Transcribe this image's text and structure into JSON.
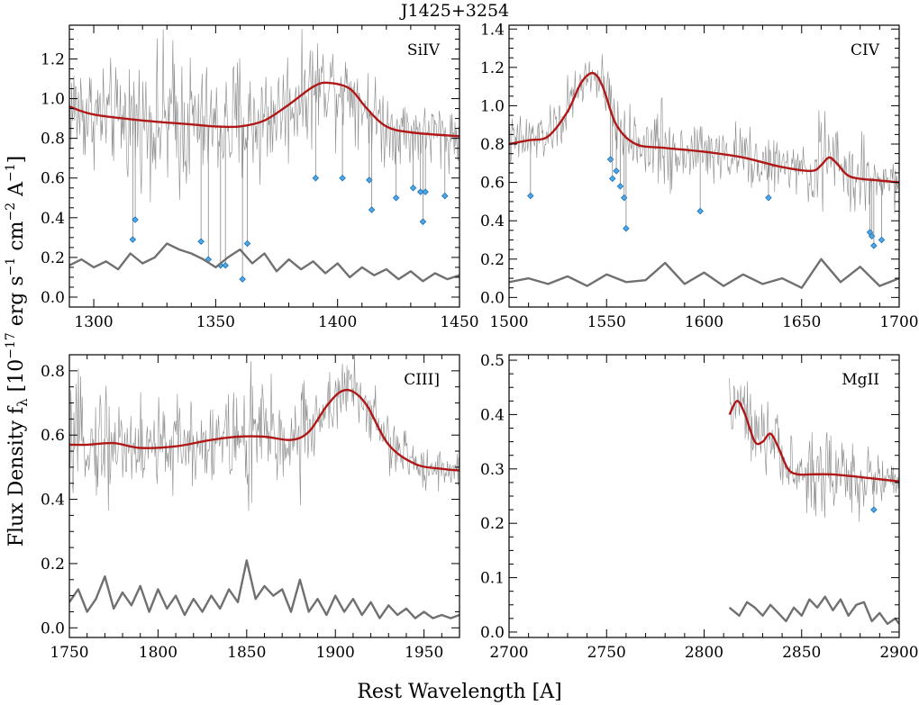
{
  "title": "J1425+3254",
  "xlabel": "Rest Wavelength [A]",
  "ylabel": {
    "prefix": "Flux Density f",
    "sub": "λ",
    "bracket_open": " [10",
    "exp1": "−17",
    "erg": " erg s",
    "exp2": "−1",
    "cm": " cm",
    "exp3": "−2",
    "ang": " A",
    "exp4": "−1",
    "bracket_close": "]"
  },
  "colors": {
    "model": "#b01818",
    "spectrum": "#8a8a8a",
    "error": "#707070",
    "marker_fill": "#4fa8e6",
    "marker_edge": "#1a6fb8"
  },
  "chart_data": [
    {
      "type": "line",
      "label": "SiIV",
      "xlim": [
        1290,
        1450
      ],
      "ylim": [
        -0.05,
        1.37
      ],
      "xticks": [
        1300,
        1350,
        1400,
        1450
      ],
      "yticks": [
        0.0,
        0.2,
        0.4,
        0.6,
        0.8,
        1.0,
        1.2
      ],
      "series": [
        {
          "role": "model",
          "x": [
            1290,
            1300,
            1320,
            1340,
            1350,
            1360,
            1370,
            1380,
            1390,
            1396,
            1405,
            1412,
            1420,
            1430,
            1450
          ],
          "y": [
            0.96,
            0.92,
            0.89,
            0.87,
            0.86,
            0.86,
            0.89,
            0.97,
            1.06,
            1.08,
            1.05,
            0.95,
            0.86,
            0.83,
            0.81
          ]
        },
        {
          "role": "error",
          "x": [
            1290,
            1295,
            1300,
            1305,
            1310,
            1315,
            1320,
            1325,
            1330,
            1335,
            1340,
            1345,
            1350,
            1355,
            1360,
            1365,
            1370,
            1375,
            1380,
            1385,
            1390,
            1395,
            1400,
            1405,
            1410,
            1415,
            1420,
            1425,
            1430,
            1435,
            1440,
            1445,
            1450
          ],
          "y": [
            0.16,
            0.19,
            0.15,
            0.18,
            0.14,
            0.22,
            0.17,
            0.2,
            0.27,
            0.24,
            0.22,
            0.19,
            0.15,
            0.2,
            0.24,
            0.17,
            0.22,
            0.13,
            0.19,
            0.14,
            0.18,
            0.12,
            0.17,
            0.1,
            0.15,
            0.11,
            0.14,
            0.09,
            0.13,
            0.08,
            0.12,
            0.09,
            0.11
          ]
        }
      ],
      "absorption_markers": [
        {
          "x": 1316,
          "y": 0.29
        },
        {
          "x": 1317,
          "y": 0.39
        },
        {
          "x": 1344,
          "y": 0.28
        },
        {
          "x": 1347,
          "y": 0.19
        },
        {
          "x": 1352,
          "y": 0.16
        },
        {
          "x": 1354,
          "y": 0.16
        },
        {
          "x": 1361,
          "y": 0.09
        },
        {
          "x": 1363,
          "y": 0.27
        },
        {
          "x": 1391,
          "y": 0.6
        },
        {
          "x": 1402,
          "y": 0.6
        },
        {
          "x": 1413,
          "y": 0.59
        },
        {
          "x": 1414,
          "y": 0.44
        },
        {
          "x": 1424,
          "y": 0.5
        },
        {
          "x": 1431,
          "y": 0.55
        },
        {
          "x": 1434,
          "y": 0.53
        },
        {
          "x": 1435,
          "y": 0.38
        },
        {
          "x": 1436,
          "y": 0.53
        },
        {
          "x": 1444,
          "y": 0.51
        }
      ]
    },
    {
      "type": "line",
      "label": "CIV",
      "xlim": [
        1500,
        1700
      ],
      "ylim": [
        -0.05,
        1.42
      ],
      "xticks": [
        1500,
        1550,
        1600,
        1650,
        1700
      ],
      "yticks": [
        0.0,
        0.2,
        0.4,
        0.6,
        0.8,
        1.0,
        1.2,
        1.4
      ],
      "series": [
        {
          "role": "model",
          "x": [
            1500,
            1510,
            1520,
            1530,
            1537,
            1543,
            1548,
            1555,
            1565,
            1580,
            1600,
            1620,
            1640,
            1655,
            1660,
            1664,
            1668,
            1675,
            1690,
            1700
          ],
          "y": [
            0.8,
            0.82,
            0.84,
            0.97,
            1.12,
            1.17,
            1.1,
            0.9,
            0.8,
            0.78,
            0.76,
            0.73,
            0.68,
            0.66,
            0.69,
            0.73,
            0.7,
            0.63,
            0.61,
            0.6
          ]
        },
        {
          "role": "error",
          "x": [
            1500,
            1510,
            1520,
            1530,
            1540,
            1550,
            1560,
            1570,
            1580,
            1590,
            1600,
            1610,
            1620,
            1630,
            1640,
            1650,
            1660,
            1670,
            1680,
            1690,
            1700
          ],
          "y": [
            0.08,
            0.1,
            0.07,
            0.11,
            0.06,
            0.12,
            0.08,
            0.09,
            0.18,
            0.07,
            0.13,
            0.06,
            0.12,
            0.07,
            0.1,
            0.05,
            0.2,
            0.08,
            0.16,
            0.06,
            0.1
          ]
        }
      ],
      "absorption_markers": [
        {
          "x": 1511,
          "y": 0.53
        },
        {
          "x": 1552,
          "y": 0.72
        },
        {
          "x": 1553,
          "y": 0.62
        },
        {
          "x": 1555,
          "y": 0.66
        },
        {
          "x": 1557,
          "y": 0.58
        },
        {
          "x": 1559,
          "y": 0.52
        },
        {
          "x": 1560,
          "y": 0.36
        },
        {
          "x": 1598,
          "y": 0.45
        },
        {
          "x": 1633,
          "y": 0.52
        },
        {
          "x": 1685,
          "y": 0.34
        },
        {
          "x": 1686,
          "y": 0.32
        },
        {
          "x": 1687,
          "y": 0.27
        },
        {
          "x": 1691,
          "y": 0.3
        }
      ]
    },
    {
      "type": "line",
      "label": "CIII]",
      "xlim": [
        1750,
        1970
      ],
      "ylim": [
        -0.03,
        0.85
      ],
      "xticks": [
        1750,
        1800,
        1850,
        1900,
        1950
      ],
      "yticks": [
        0.0,
        0.2,
        0.4,
        0.6,
        0.8
      ],
      "series": [
        {
          "role": "model",
          "x": [
            1750,
            1760,
            1775,
            1790,
            1810,
            1830,
            1845,
            1860,
            1875,
            1885,
            1895,
            1903,
            1910,
            1918,
            1930,
            1945,
            1960,
            1970
          ],
          "y": [
            0.57,
            0.57,
            0.575,
            0.56,
            0.565,
            0.585,
            0.595,
            0.595,
            0.585,
            0.61,
            0.69,
            0.735,
            0.735,
            0.69,
            0.57,
            0.51,
            0.495,
            0.49
          ]
        },
        {
          "role": "error",
          "x": [
            1750,
            1755,
            1760,
            1765,
            1770,
            1775,
            1780,
            1785,
            1790,
            1795,
            1800,
            1805,
            1810,
            1815,
            1820,
            1825,
            1830,
            1835,
            1840,
            1845,
            1850,
            1855,
            1860,
            1865,
            1870,
            1875,
            1880,
            1885,
            1890,
            1895,
            1900,
            1905,
            1910,
            1915,
            1920,
            1925,
            1930,
            1935,
            1940,
            1945,
            1950,
            1955,
            1960,
            1965,
            1970
          ],
          "y": [
            0.08,
            0.12,
            0.05,
            0.09,
            0.16,
            0.06,
            0.11,
            0.07,
            0.13,
            0.05,
            0.12,
            0.06,
            0.1,
            0.04,
            0.09,
            0.05,
            0.1,
            0.06,
            0.12,
            0.08,
            0.21,
            0.09,
            0.13,
            0.1,
            0.12,
            0.05,
            0.15,
            0.05,
            0.09,
            0.04,
            0.1,
            0.05,
            0.09,
            0.04,
            0.08,
            0.03,
            0.07,
            0.04,
            0.06,
            0.03,
            0.05,
            0.03,
            0.04,
            0.03,
            0.04
          ]
        }
      ],
      "absorption_markers": []
    },
    {
      "type": "line",
      "label": "MgII",
      "xlim": [
        2700,
        2900
      ],
      "ylim": [
        -0.01,
        0.51
      ],
      "xticks": [
        2700,
        2750,
        2800,
        2850,
        2900
      ],
      "yticks": [
        0.0,
        0.1,
        0.2,
        0.3,
        0.4,
        0.5
      ],
      "series": [
        {
          "role": "model",
          "x": [
            2813,
            2817,
            2821,
            2826,
            2830,
            2834,
            2838,
            2843,
            2848,
            2855,
            2865,
            2875,
            2885,
            2895,
            2900
          ],
          "y": [
            0.4,
            0.425,
            0.4,
            0.35,
            0.35,
            0.365,
            0.34,
            0.3,
            0.29,
            0.29,
            0.29,
            0.287,
            0.283,
            0.279,
            0.277
          ]
        },
        {
          "role": "error",
          "x": [
            2813,
            2818,
            2822,
            2826,
            2830,
            2834,
            2838,
            2842,
            2846,
            2850,
            2854,
            2858,
            2862,
            2866,
            2870,
            2874,
            2878,
            2882,
            2886,
            2890,
            2894,
            2898,
            2900
          ],
          "y": [
            0.045,
            0.03,
            0.055,
            0.045,
            0.03,
            0.05,
            0.035,
            0.02,
            0.045,
            0.03,
            0.06,
            0.045,
            0.065,
            0.04,
            0.06,
            0.03,
            0.05,
            0.055,
            0.02,
            0.035,
            0.015,
            0.025,
            0.015
          ]
        }
      ],
      "absorption_markers": [
        {
          "x": 2887,
          "y": 0.225
        }
      ]
    }
  ]
}
